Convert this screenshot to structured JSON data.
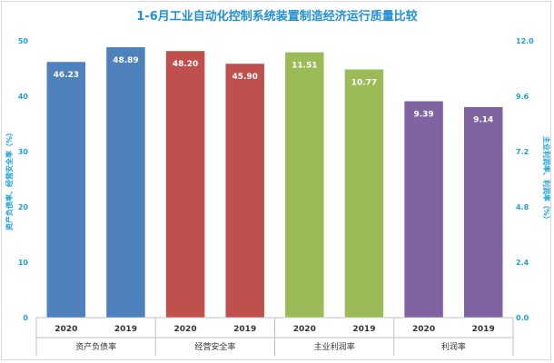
{
  "chart_data": {
    "type": "bar",
    "title": "1-6月工业自动化控制系统装置制造经济运行质量比较",
    "ylabel_left": "资产负债率、经营安全率（%）",
    "ylabel_right": "主业利润率、利润率（%）",
    "ylim_left": [
      0,
      50
    ],
    "ylim_right": [
      0.0,
      12.0
    ],
    "yticks_left": [
      "0",
      "10",
      "20",
      "30",
      "40",
      "50"
    ],
    "yticks_right": [
      "0.0",
      "2.4",
      "4.8",
      "7.2",
      "9.6",
      "12.0"
    ],
    "grid": false,
    "groups": [
      {
        "name": "资产负债率",
        "axis": "left",
        "color": "#4f81bd",
        "bars": [
          {
            "x": "2020",
            "value": 46.23,
            "label": "46.23"
          },
          {
            "x": "2019",
            "value": 48.89,
            "label": "48.89"
          }
        ]
      },
      {
        "name": "经营安全率",
        "axis": "left",
        "color": "#c0504d",
        "bars": [
          {
            "x": "2020",
            "value": 48.2,
            "label": "48.20"
          },
          {
            "x": "2019",
            "value": 45.9,
            "label": "45.90"
          }
        ]
      },
      {
        "name": "主业利润率",
        "axis": "right",
        "color": "#9bbb59",
        "bars": [
          {
            "x": "2020",
            "value": 11.51,
            "label": "11.51"
          },
          {
            "x": "2019",
            "value": 10.77,
            "label": "10.77"
          }
        ]
      },
      {
        "name": "利润率",
        "axis": "right",
        "color": "#8064a2",
        "bars": [
          {
            "x": "2020",
            "value": 9.39,
            "label": "9.39"
          },
          {
            "x": "2019",
            "value": 9.14,
            "label": "9.14"
          }
        ]
      }
    ],
    "colors": {
      "title": "#1f8fd6",
      "axis_text": "#1fa0d8",
      "label_text": "#ffffff",
      "axis_line": "#bfbfbf"
    }
  }
}
